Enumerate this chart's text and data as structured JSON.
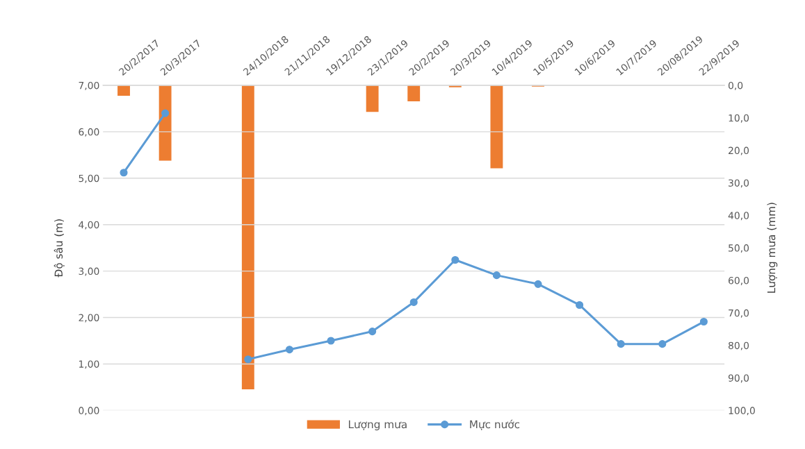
{
  "chart_data": {
    "type": "bar",
    "categories": [
      "20/2/2017",
      "20/3/2017",
      null,
      "24/10/2018",
      "21/11/2018",
      "19/12/2018",
      "23/1/2019",
      "20/2/2019",
      "20/3/2019",
      "10/4/2019",
      "10/5/2019",
      "10/6/2019",
      "10/7/2019",
      "20/08/2019",
      "22/9/2019"
    ],
    "series": [
      {
        "name": "Lượng mưa",
        "axis": "y2",
        "color": "#ed7d31",
        "values": [
          3.2,
          23.2,
          null,
          93.5,
          0,
          0,
          8.2,
          4.9,
          0.6,
          25.5,
          0.4,
          0,
          0,
          0,
          0
        ]
      },
      {
        "name": "Mực nước",
        "type": "line",
        "color": "#5b9bd5",
        "marker": "circle",
        "values": [
          5.12,
          6.4,
          null,
          1.1,
          1.31,
          1.5,
          1.7,
          2.33,
          3.24,
          2.91,
          2.72,
          2.27,
          1.43,
          1.43,
          1.91
        ]
      }
    ],
    "ylabel": "Độ sâu (m)",
    "y2label": "Lượng mưa (mm)",
    "ylim": [
      0,
      7
    ],
    "yticks": [
      {
        "value": 0,
        "label": "0,00"
      },
      {
        "value": 1,
        "label": "1,00"
      },
      {
        "value": 2,
        "label": "2,00"
      },
      {
        "value": 3,
        "label": "3,00"
      },
      {
        "value": 4,
        "label": "4,00"
      },
      {
        "value": 5,
        "label": "5,00"
      },
      {
        "value": 6,
        "label": "6,00"
      },
      {
        "value": 7,
        "label": "7,00"
      }
    ],
    "y2lim": [
      100,
      0
    ],
    "y2ticks": [
      {
        "value": 0,
        "label": "0,0"
      },
      {
        "value": 10,
        "label": "10,0"
      },
      {
        "value": 20,
        "label": "20,0"
      },
      {
        "value": 30,
        "label": "30,0"
      },
      {
        "value": 40,
        "label": "40,0"
      },
      {
        "value": 50,
        "label": "50,0"
      },
      {
        "value": 60,
        "label": "60,0"
      },
      {
        "value": 70,
        "label": "70,0"
      },
      {
        "value": 80,
        "label": "80,0"
      },
      {
        "value": 90,
        "label": "90,0"
      },
      {
        "value": 100,
        "label": "100,0"
      }
    ],
    "grid": "y",
    "legend": "bottom"
  }
}
